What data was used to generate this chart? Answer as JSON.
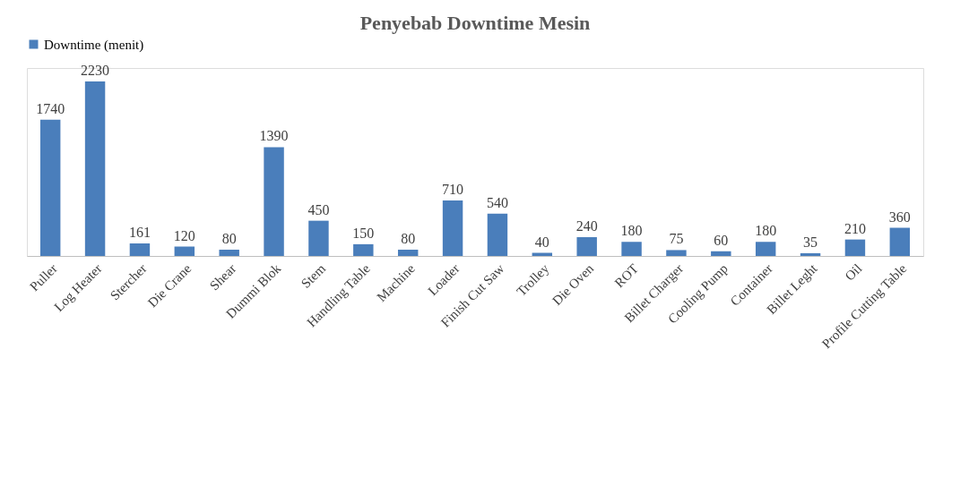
{
  "chart_data": {
    "type": "bar",
    "title": "Penyebab Downtime Mesin",
    "categories": [
      "Puller",
      "Log Heater",
      "Stercher",
      "Die Crane",
      "Shear",
      "Dummi Blok",
      "Stem",
      "Handling Table",
      "Machine",
      "Loader",
      "Finish Cut Saw",
      "Trolley",
      "Die Oven",
      "ROT",
      "Billet Charger",
      "Cooling Pump",
      "Container",
      "Billet Leght",
      "Oil",
      "Profile Cutting Table"
    ],
    "series": [
      {
        "name": "Downtime (menit)",
        "color": "#4a7ebb",
        "values": [
          1740,
          2230,
          161,
          120,
          80,
          1390,
          450,
          150,
          80,
          710,
          540,
          40,
          240,
          180,
          75,
          60,
          180,
          35,
          210,
          360
        ]
      }
    ],
    "data_labels": true,
    "legend": "top",
    "grid": false
  }
}
